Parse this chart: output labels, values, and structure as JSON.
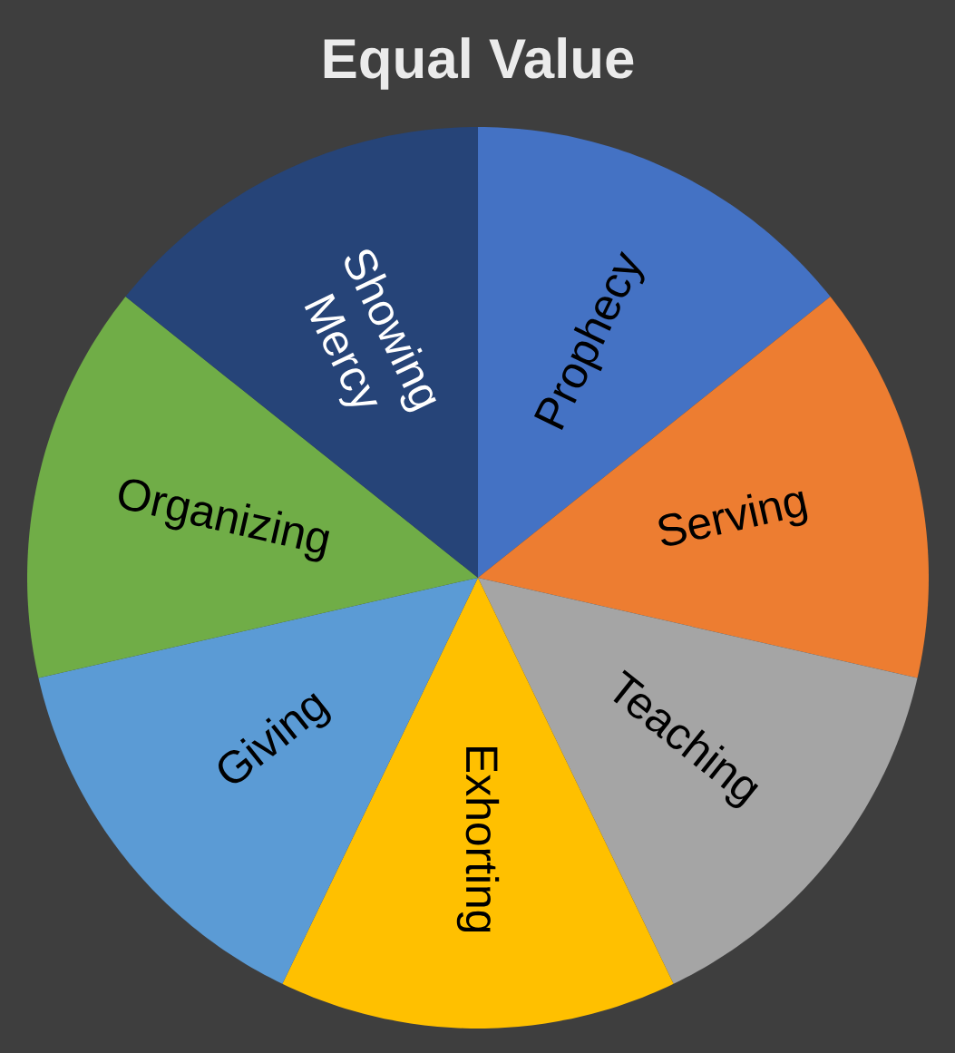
{
  "chart_data": {
    "type": "pie",
    "title": "Equal Value",
    "categories": [
      "Prophecy",
      "Serving",
      "Teaching",
      "Exhorting",
      "Giving",
      "Organizing",
      "Showing Mercy"
    ],
    "values": [
      14.285714285714286,
      14.285714285714286,
      14.285714285714286,
      14.285714285714286,
      14.285714285714286,
      14.285714285714286,
      14.285714285714286
    ],
    "colors": [
      "#4472c4",
      "#ed7d31",
      "#a5a5a5",
      "#ffc000",
      "#5b9bd5",
      "#70ad47",
      "#264478"
    ]
  }
}
